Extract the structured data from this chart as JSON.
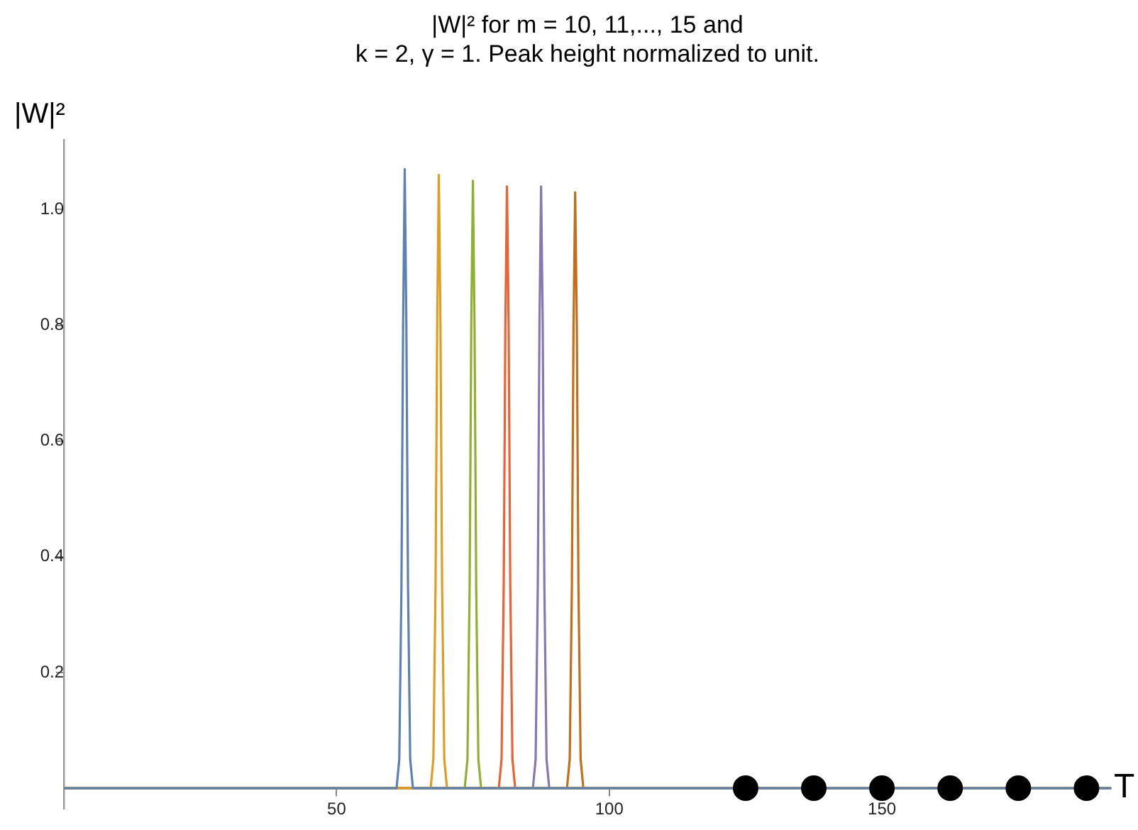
{
  "chart_data": {
    "type": "line",
    "title": "|W|² for m = 10, 11,..., 15 and\nk = 2, γ = 1. Peak height normalized to unit.",
    "xlabel": "T",
    "ylabel": "|W|²",
    "xlim": [
      0,
      192
    ],
    "xticks": [
      50,
      100,
      150
    ],
    "ylim": [
      -0.035,
      1.12
    ],
    "yticks": [
      0.2,
      0.4,
      0.6,
      0.8,
      {
        "value": 1,
        "label": "1.0"
      }
    ],
    "grid": false,
    "legend": false,
    "marker": "none",
    "line_style": "solid",
    "series": [
      {
        "color": "#5e81b5",
        "x": [
          0,
          61,
          61.5,
          61.9,
          62.2,
          62.5,
          62.8,
          63.1,
          63.5,
          64,
          192
        ],
        "values": [
          0,
          0,
          0.05,
          0.35,
          0.8,
          1.07,
          0.8,
          0.35,
          0.05,
          0,
          0
        ]
      },
      {
        "color": "#e19c24",
        "x": [
          0,
          67.25,
          67.75,
          68.15,
          68.45,
          68.75,
          69.05,
          69.35,
          69.75,
          70.25,
          192
        ],
        "values": [
          0,
          0,
          0.05,
          0.35,
          0.8,
          1.06,
          0.8,
          0.35,
          0.05,
          0,
          0
        ]
      },
      {
        "color": "#8fb032",
        "x": [
          0,
          73.5,
          74,
          74.4,
          74.7,
          75,
          75.3,
          75.6,
          76,
          76.5,
          192
        ],
        "values": [
          0,
          0,
          0.05,
          0.35,
          0.8,
          1.05,
          0.8,
          0.35,
          0.05,
          0,
          0
        ]
      },
      {
        "color": "#eb6235",
        "x": [
          0,
          79.75,
          80.25,
          80.65,
          80.95,
          81.25,
          81.55,
          81.85,
          82.25,
          82.75,
          192
        ],
        "values": [
          0,
          0,
          0.05,
          0.35,
          0.8,
          1.04,
          0.8,
          0.35,
          0.05,
          0,
          0
        ]
      },
      {
        "color": "#8778b3",
        "x": [
          0,
          86,
          86.5,
          86.9,
          87.2,
          87.5,
          87.8,
          88.1,
          88.5,
          89,
          192
        ],
        "values": [
          0,
          0,
          0.05,
          0.35,
          0.8,
          1.04,
          0.8,
          0.35,
          0.05,
          0,
          0
        ]
      },
      {
        "color": "#c56e1a",
        "x": [
          0,
          92.25,
          92.75,
          93.15,
          93.45,
          93.75,
          94.05,
          94.35,
          94.75,
          95.25,
          192
        ],
        "values": [
          0,
          0,
          0.05,
          0.35,
          0.8,
          1.03,
          0.8,
          0.35,
          0.05,
          0,
          0
        ]
      },
      {
        "type": "scatter",
        "marker": "circle",
        "color": "#000000",
        "x": [
          125,
          137.5,
          150,
          162.5,
          175,
          187.5
        ],
        "values": [
          0,
          0,
          0,
          0,
          0,
          0
        ]
      }
    ]
  }
}
